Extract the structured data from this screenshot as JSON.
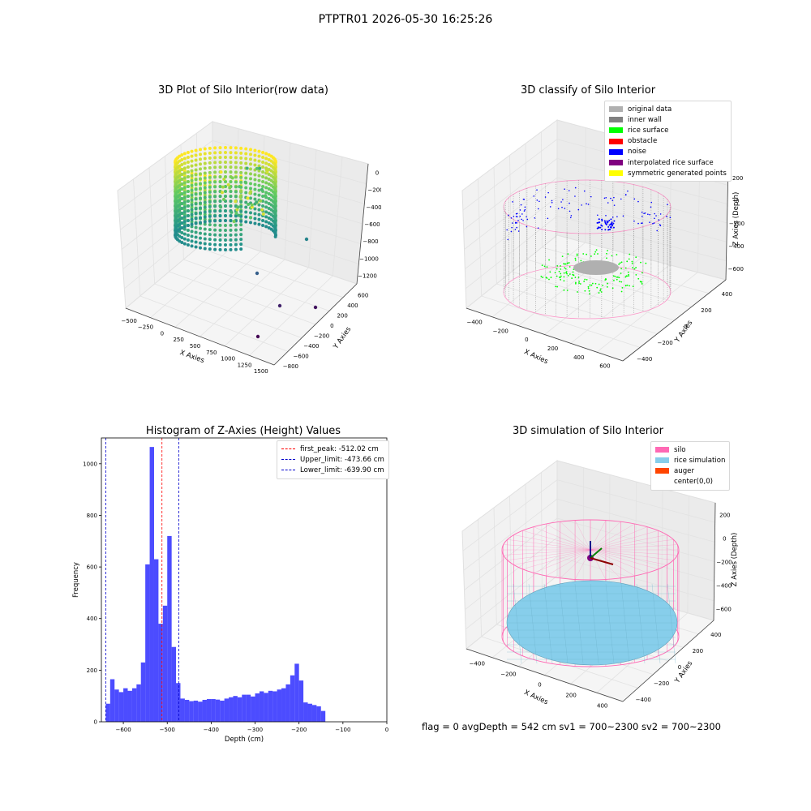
{
  "suptitle": "PTPTR01 2026-05-30 16:25:26",
  "footer": "flag = 0     avgDepth = 542 cm  sv1 = 700~2300  sv2 = 700~2300",
  "colors": {
    "hist_bar": "#0000ff",
    "first_peak": "#ff0000",
    "limits": "#0000cc",
    "silo": "#ff69b4",
    "rice": "#87ceeb",
    "auger": "#ff4500"
  },
  "chart_data": [
    {
      "type": "scatter",
      "title": "3D Plot of Silo Interior(row data)",
      "xlabel": "X Axies",
      "ylabel": "Y Axies",
      "zlabel": "Z Axies (Depth)",
      "x_ticks": [
        "−500",
        "−250",
        "0",
        "250",
        "500",
        "750",
        "1000",
        "1250",
        "1500"
      ],
      "y_ticks": [
        "−800",
        "−600",
        "−400",
        "−200",
        "0",
        "200",
        "400",
        "600"
      ],
      "z_ticks": [
        "0",
        "−200",
        "−400",
        "−600",
        "−800",
        "−1000",
        "−1200"
      ],
      "colormap": "viridis"
    },
    {
      "type": "scatter",
      "title": "3D classify of Silo Interior",
      "xlabel": "X Axies",
      "ylabel": "Y Axies",
      "zlabel": "Z Axies (Depth)",
      "x_ticks": [
        "−400",
        "−200",
        "0",
        "200",
        "400",
        "600"
      ],
      "y_ticks": [
        "−400",
        "−200",
        "0",
        "200",
        "400"
      ],
      "z_ticks": [
        "200",
        "0",
        "−200",
        "−400",
        "−600"
      ],
      "legend": [
        {
          "label": "original data",
          "color": "#b0b0b0"
        },
        {
          "label": "inner wall",
          "color": "#808080"
        },
        {
          "label": "rice surface",
          "color": "#00ff00"
        },
        {
          "label": "obstacle",
          "color": "#ff0000"
        },
        {
          "label": "noise",
          "color": "#0000ff"
        },
        {
          "label": "interpolated rice surface",
          "color": "#800080"
        },
        {
          "label": "symmetric generated points",
          "color": "#ffff00"
        }
      ]
    },
    {
      "type": "bar",
      "title": "Histogram of Z-Axies (Height) Values",
      "xlabel": "Depth (cm)",
      "ylabel": "Frequency",
      "xlim": [
        -650,
        0
      ],
      "ylim": [
        0,
        1100
      ],
      "x_ticks": [
        -600,
        -500,
        -400,
        -300,
        -200,
        -100,
        0
      ],
      "x_tick_labels": [
        "−600",
        "−500",
        "−400",
        "−300",
        "−200",
        "−100",
        "0"
      ],
      "y_ticks": [
        0,
        200,
        400,
        600,
        800,
        1000
      ],
      "y_tick_labels": [
        "0",
        "200",
        "400",
        "600",
        "800",
        "1000"
      ],
      "bin_start": -640,
      "bin_width": 10,
      "values": [
        70,
        165,
        125,
        115,
        130,
        120,
        130,
        145,
        230,
        610,
        1065,
        630,
        380,
        450,
        720,
        290,
        150,
        90,
        85,
        80,
        82,
        78,
        85,
        88,
        88,
        86,
        82,
        90,
        95,
        100,
        95,
        105,
        105,
        98,
        110,
        118,
        112,
        120,
        118,
        125,
        130,
        145,
        180,
        225,
        160,
        75,
        70,
        65,
        60,
        42
      ],
      "lines": [
        {
          "label": "first_peak: -512.02 cm",
          "x": -512.02,
          "color": "#ff0000"
        },
        {
          "label": "Upper_limit: -473.66 cm",
          "x": -473.66,
          "color": "#0000cc"
        },
        {
          "label": "Lower_limit: -639.90 cm",
          "x": -639.9,
          "color": "#0000cc"
        }
      ]
    },
    {
      "type": "scatter",
      "title": "3D simulation of Silo Interior",
      "xlabel": "X Axies",
      "ylabel": "Y Axies",
      "zlabel": "Z Axies (Depth)",
      "x_ticks": [
        "−400",
        "−200",
        "0",
        "200",
        "400"
      ],
      "y_ticks": [
        "−400",
        "−200",
        "0",
        "200",
        "400"
      ],
      "z_ticks": [
        "200",
        "0",
        "−200",
        "−400",
        "−600"
      ],
      "legend": [
        {
          "label": "silo",
          "color": "#ff69b4"
        },
        {
          "label": "rice simulation",
          "color": "#87ceeb"
        },
        {
          "label": "auger",
          "color": "#ff4500"
        },
        {
          "label": "center(0,0)",
          "color": ""
        }
      ]
    }
  ]
}
